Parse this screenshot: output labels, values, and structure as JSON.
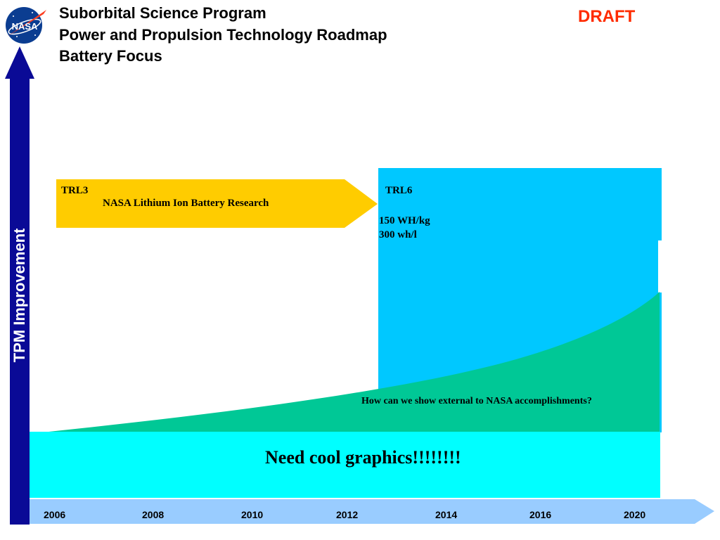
{
  "header": {
    "title_lines": [
      "Suborbital Science Program",
      "Power and Propulsion Technology Roadmap",
      "Battery Focus"
    ],
    "draft_label": "DRAFT",
    "logo_text": "NASA",
    "logo_icon": "nasa-meatball-logo"
  },
  "y_axis": {
    "label": "TPM Improvement"
  },
  "roadmap": {
    "research_arrow": {
      "trl": "TRL3",
      "label": "NASA Lithium Ion Battery Research"
    },
    "target_box": {
      "trl": "TRL6",
      "specs": [
        "150 WH/kg",
        "300 wh/l"
      ]
    },
    "growth_note": "How can we show external to NASA accomplishments?",
    "placeholder_note": "Need cool graphics!!!!!!!!"
  },
  "timeline": {
    "years": [
      "2006",
      "2008",
      "2010",
      "2012",
      "2014",
      "2016",
      "2020"
    ]
  },
  "colors": {
    "title": "#000000",
    "draft": "#ff2b00",
    "y_axis_arrow": "#0a0a96",
    "research_arrow": "#ffcc00",
    "target_box": "#00c8ff",
    "growth_area": "#00c896",
    "placeholder_band": "#00ffff",
    "timeline_arrow": "#99ccff"
  }
}
